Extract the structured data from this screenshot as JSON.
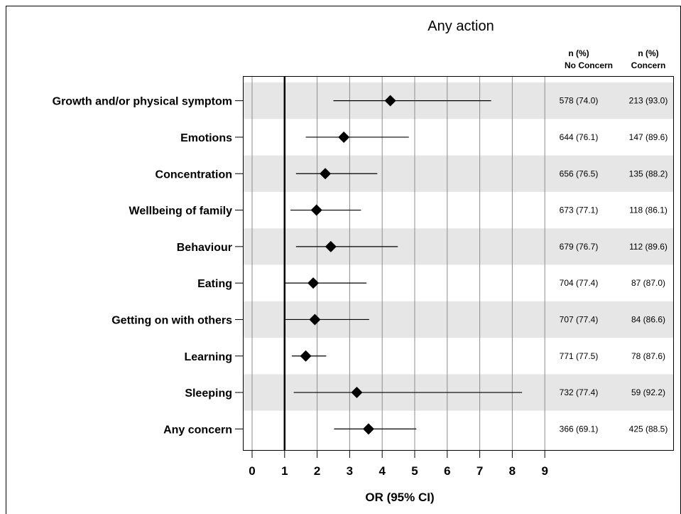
{
  "chart_data": {
    "type": "forest",
    "title": "Any action",
    "xlabel": "OR (95% CI)",
    "xlim": [
      0,
      9
    ],
    "x_ticks": [
      0,
      1,
      2,
      3,
      4,
      5,
      6,
      7,
      8,
      9
    ],
    "reference_line": 1,
    "grid": true,
    "column_headers": [
      {
        "line1": "n (%)",
        "line2": "No Concern"
      },
      {
        "line1": "n (%)",
        "line2": "Concern"
      }
    ],
    "rows": [
      {
        "label": "Growth and/or physical symptom",
        "or": 4.25,
        "lo": 2.5,
        "hi": 7.35,
        "no_concern": "578 (74.0)",
        "concern": "213 (93.0)"
      },
      {
        "label": "Emotions",
        "or": 2.82,
        "lo": 1.65,
        "hi": 4.82,
        "no_concern": "644 (76.1)",
        "concern": "147 (89.6)"
      },
      {
        "label": "Concentration",
        "or": 2.25,
        "lo": 1.35,
        "hi": 3.85,
        "no_concern": "656 (76.5)",
        "concern": "135 (88.2)"
      },
      {
        "label": "Wellbeing of family",
        "or": 1.98,
        "lo": 1.18,
        "hi": 3.35,
        "no_concern": "673 (77.1)",
        "concern": "118 (86.1)"
      },
      {
        "label": "Behaviour",
        "or": 2.42,
        "lo": 1.35,
        "hi": 4.48,
        "no_concern": "679 (76.7)",
        "concern": "112 (89.6)"
      },
      {
        "label": "Eating",
        "or": 1.88,
        "lo": 1.0,
        "hi": 3.52,
        "no_concern": "704 (77.4)",
        "concern": "87 (87.0)"
      },
      {
        "label": "Getting on with others",
        "or": 1.93,
        "lo": 1.02,
        "hi": 3.6,
        "no_concern": "707 (77.4)",
        "concern": "84 (86.6)"
      },
      {
        "label": "Learning",
        "or": 1.65,
        "lo": 1.22,
        "hi": 2.28,
        "no_concern": "771 (77.5)",
        "concern": "78 (87.6)"
      },
      {
        "label": "Sleeping",
        "or": 3.22,
        "lo": 1.28,
        "hi": 8.3,
        "no_concern": "732 (77.4)",
        "concern": "59 (92.2)"
      },
      {
        "label": "Any concern",
        "or": 3.58,
        "lo": 2.52,
        "hi": 5.05,
        "no_concern": "366 (69.1)",
        "concern": "425 (88.5)"
      }
    ],
    "colors": {
      "band": "#e6e6e6",
      "gridline": "#8c8c8c",
      "marker": "#000000"
    }
  }
}
